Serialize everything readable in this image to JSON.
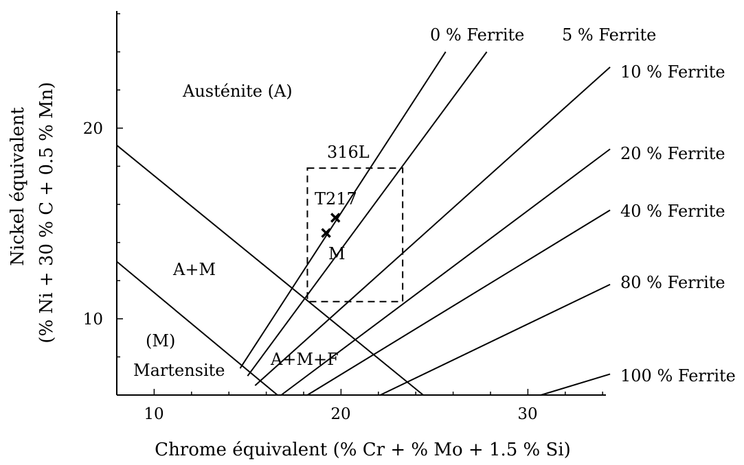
{
  "chart_data": {
    "type": "diagram",
    "title": "",
    "xlabel": "Chrome équivalent (% Cr + % Mo + 1.5 % Si)",
    "ylabel_line1": "Nickel équivalent",
    "ylabel_line2": "(% Ni + 30 % C + 0.5 % Mn)",
    "xlim": [
      8,
      34.4
    ],
    "ylim": [
      6,
      26
    ],
    "x_ticks": [
      {
        "value": 10,
        "label": "10"
      },
      {
        "value": 20,
        "label": "20"
      },
      {
        "value": 30,
        "label": "30"
      }
    ],
    "y_ticks": [
      {
        "value": 10,
        "label": "10"
      },
      {
        "value": 20,
        "label": "20"
      }
    ],
    "boundaries": [
      {
        "name": "austenite-martensite-boundary",
        "points": [
          [
            8,
            19.1
          ],
          [
            24.4,
            6
          ]
        ]
      },
      {
        "name": "martensite-boundary",
        "points": [
          [
            8,
            13.0
          ],
          [
            16.6,
            6
          ]
        ]
      }
    ],
    "ferrite_lines": [
      {
        "label": "0 % Ferrite",
        "points": [
          [
            14.6,
            7.4
          ],
          [
            25.6,
            24.0
          ]
        ]
      },
      {
        "label": "5 % Ferrite",
        "points": [
          [
            15.0,
            7.0
          ],
          [
            27.8,
            24.0
          ]
        ]
      },
      {
        "label": "10 % Ferrite",
        "points": [
          [
            15.4,
            6.5
          ],
          [
            34.4,
            23.2
          ]
        ]
      },
      {
        "label": "20 % Ferrite",
        "points": [
          [
            16.8,
            6.0
          ],
          [
            34.4,
            18.9
          ]
        ]
      },
      {
        "label": "40 % Ferrite",
        "points": [
          [
            18.2,
            6.0
          ],
          [
            34.4,
            15.7
          ]
        ]
      },
      {
        "label": "80 % Ferrite",
        "points": [
          [
            22.1,
            6.0
          ],
          [
            34.4,
            11.8
          ]
        ]
      },
      {
        "label": "100 % Ferrite",
        "points": [
          [
            30.7,
            6.0
          ],
          [
            34.4,
            7.1
          ]
        ]
      }
    ],
    "grade_box": {
      "label": "316L",
      "x": [
        18.2,
        23.3
      ],
      "y": [
        10.9,
        17.9
      ]
    },
    "points": [
      {
        "label": "T217",
        "x": 19.2,
        "y": 14.5
      },
      {
        "label": "T217",
        "x": 19.7,
        "y": 15.3
      }
    ],
    "region_labels": [
      {
        "text": "Austénite (A)"
      },
      {
        "text": "A+M"
      },
      {
        "text": "(M)"
      },
      {
        "text": "Martensite"
      },
      {
        "text": "A+M+F"
      },
      {
        "text": "M"
      }
    ]
  }
}
